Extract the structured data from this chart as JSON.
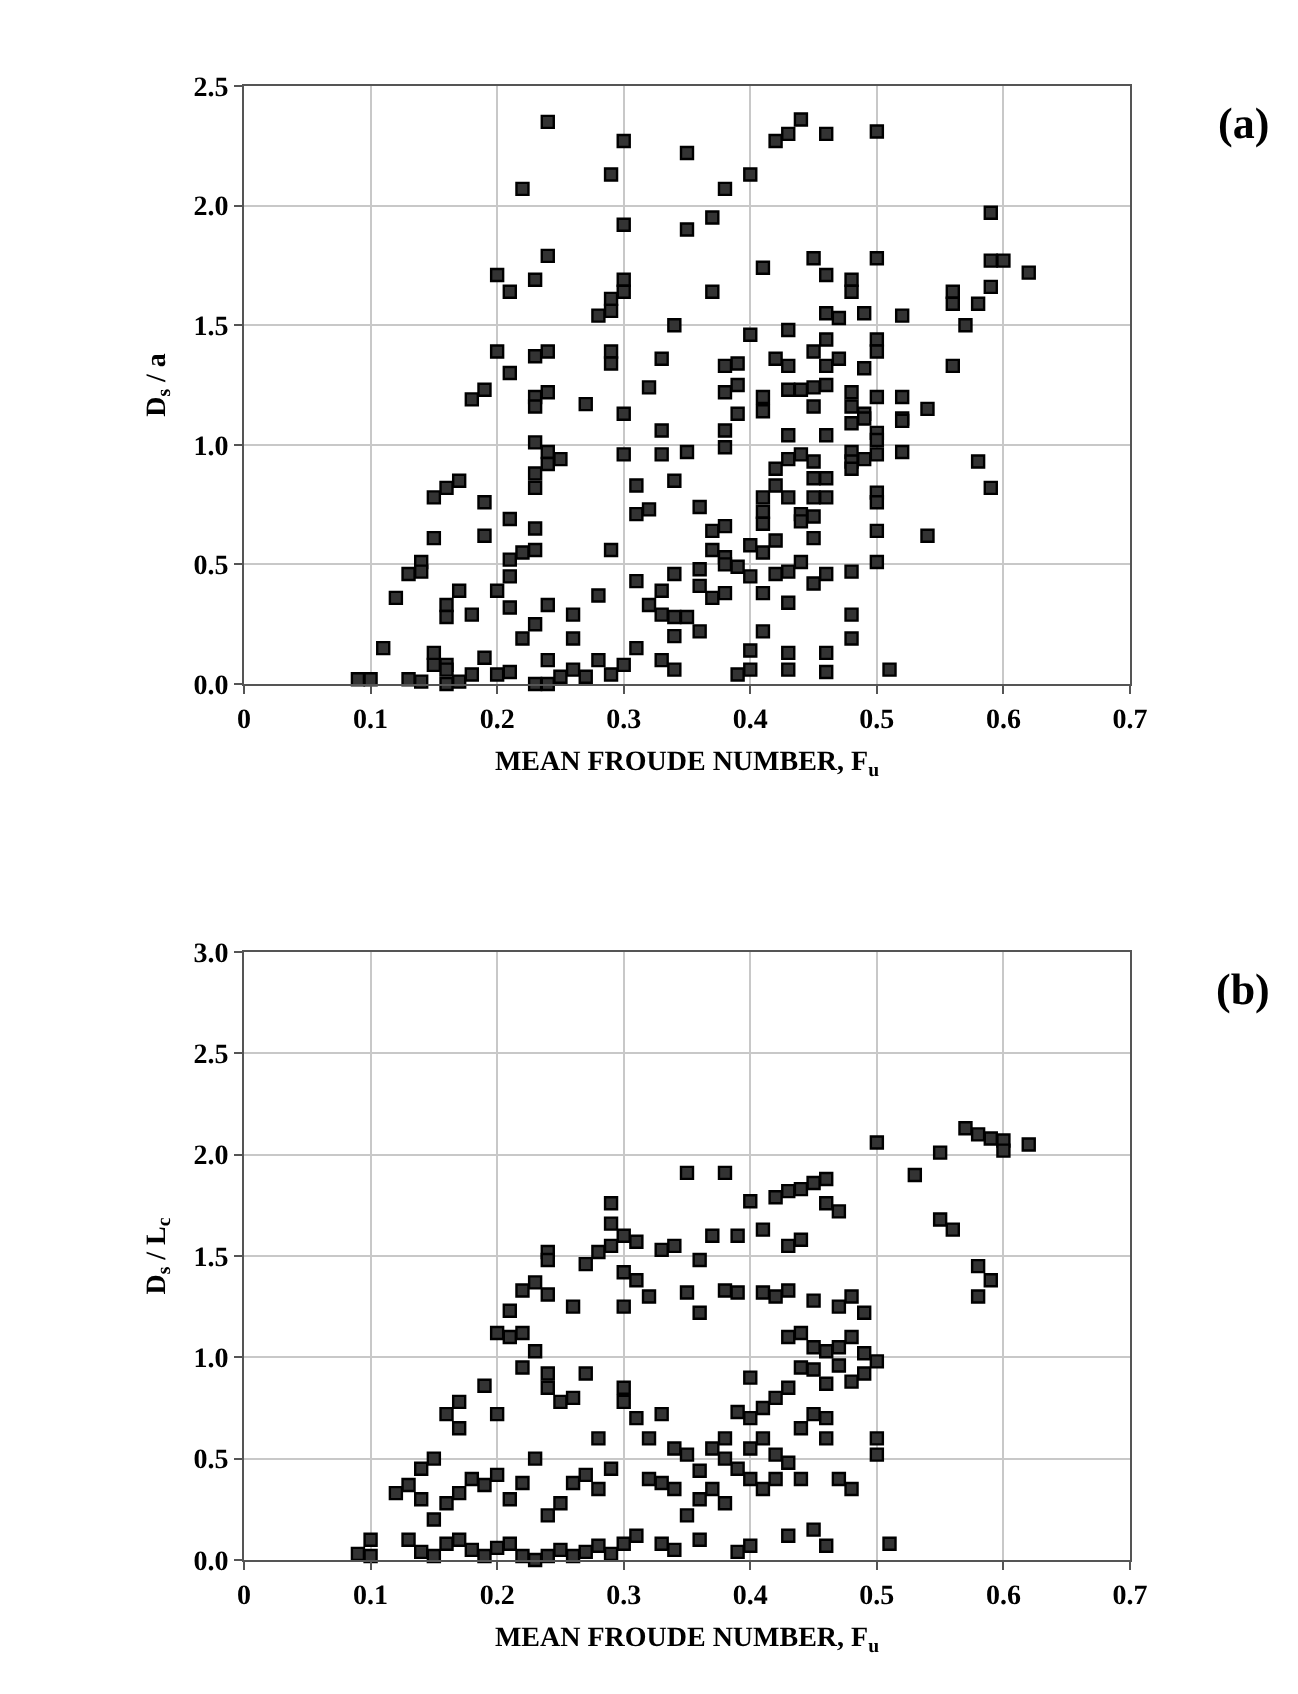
{
  "chart_data": [
    {
      "type": "scatter",
      "annotations": [
        "(a)"
      ],
      "xlabel": "MEAN FROUDE NUMBER, F$_{u}$",
      "ylabel": "D$_{s}$ / a",
      "xlim": [
        0,
        0.7
      ],
      "xticks": [
        0,
        0.1,
        0.2,
        0.3,
        0.4,
        0.5,
        0.6,
        0.7
      ],
      "ylim": [
        0,
        2.5
      ],
      "yticks": [
        {
          "value": 0,
          "label": "0.0"
        },
        {
          "value": 0.5,
          "label": "0.5"
        },
        {
          "value": 1,
          "label": "1.0"
        },
        {
          "value": 1.5,
          "label": "1.5"
        },
        {
          "value": 2,
          "label": "2.0"
        },
        {
          "value": 2.5,
          "label": "2.5"
        }
      ],
      "grid": true,
      "marker": "square",
      "color": "#333333",
      "x": [
        0.24,
        0.3,
        0.29,
        0.22,
        0.3,
        0.24,
        0.2,
        0.21,
        0.23,
        0.3,
        0.3,
        0.29,
        0.29,
        0.28,
        0.2,
        0.23,
        0.24,
        0.29,
        0.29,
        0.21,
        0.19,
        0.18,
        0.23,
        0.24,
        0.23,
        0.27,
        0.3,
        0.23,
        0.24,
        0.25,
        0.24,
        0.23,
        0.23,
        0.3,
        0.31,
        0.31,
        0.32,
        0.17,
        0.16,
        0.15,
        0.19,
        0.21,
        0.19,
        0.15,
        0.23,
        0.22,
        0.23,
        0.29,
        0.14,
        0.14,
        0.13,
        0.21,
        0.21,
        0.2,
        0.17,
        0.12,
        0.16,
        0.16,
        0.18,
        0.21,
        0.24,
        0.23,
        0.22,
        0.26,
        0.28,
        0.26,
        0.31,
        0.32,
        0.33,
        0.34,
        0.11,
        0.09,
        0.1,
        0.13,
        0.14,
        0.15,
        0.15,
        0.16,
        0.16,
        0.16,
        0.17,
        0.18,
        0.19,
        0.2,
        0.21,
        0.23,
        0.24,
        0.24,
        0.25,
        0.26,
        0.28,
        0.27,
        0.29,
        0.3,
        0.31,
        0.33,
        0.34,
        0.34,
        0.35,
        0.34,
        0.33,
        0.32,
        0.33,
        0.33,
        0.35,
        0.34,
        0.35,
        0.33,
        0.34,
        0.35,
        0.38,
        0.4,
        0.37,
        0.42,
        0.43,
        0.44,
        0.46,
        0.5,
        0.59,
        0.41,
        0.37,
        0.45,
        0.46,
        0.5,
        0.48,
        0.48,
        0.59,
        0.6,
        0.62,
        0.56,
        0.59,
        0.56,
        0.58,
        0.57,
        0.56,
        0.46,
        0.47,
        0.49,
        0.52,
        0.4,
        0.43,
        0.46,
        0.5,
        0.5,
        0.45,
        0.42,
        0.43,
        0.46,
        0.47,
        0.49,
        0.38,
        0.39,
        0.38,
        0.39,
        0.39,
        0.38,
        0.38,
        0.41,
        0.41,
        0.43,
        0.44,
        0.45,
        0.45,
        0.46,
        0.48,
        0.48,
        0.49,
        0.49,
        0.5,
        0.52,
        0.54,
        0.52,
        0.52,
        0.5,
        0.5,
        0.48,
        0.43,
        0.46,
        0.43,
        0.44,
        0.45,
        0.48,
        0.48,
        0.48,
        0.49,
        0.5,
        0.52,
        0.58,
        0.59,
        0.42,
        0.42,
        0.41,
        0.41,
        0.41,
        0.43,
        0.44,
        0.44,
        0.45,
        0.45,
        0.46,
        0.46,
        0.45,
        0.45,
        0.5,
        0.5,
        0.5,
        0.54,
        0.37,
        0.38,
        0.37,
        0.38,
        0.38,
        0.4,
        0.41,
        0.42,
        0.36,
        0.36,
        0.37,
        0.38,
        0.39,
        0.4,
        0.41,
        0.42,
        0.43,
        0.43,
        0.44,
        0.45,
        0.46,
        0.48,
        0.5,
        0.48,
        0.48,
        0.41,
        0.4,
        0.4,
        0.39,
        0.43,
        0.43,
        0.46,
        0.46,
        0.51,
        0.36,
        0.36
      ],
      "values": [
        2.35,
        2.27,
        2.13,
        2.07,
        1.92,
        1.79,
        1.71,
        1.64,
        1.69,
        1.69,
        1.64,
        1.61,
        1.56,
        1.54,
        1.39,
        1.37,
        1.39,
        1.39,
        1.34,
        1.3,
        1.23,
        1.19,
        1.2,
        1.22,
        1.16,
        1.17,
        1.13,
        1.01,
        0.97,
        0.94,
        0.92,
        0.88,
        0.82,
        0.96,
        0.83,
        0.71,
        0.73,
        0.85,
        0.82,
        0.78,
        0.76,
        0.69,
        0.62,
        0.61,
        0.65,
        0.55,
        0.56,
        0.56,
        0.51,
        0.47,
        0.46,
        0.52,
        0.45,
        0.39,
        0.39,
        0.36,
        0.33,
        0.28,
        0.29,
        0.32,
        0.33,
        0.25,
        0.19,
        0.29,
        0.37,
        0.19,
        0.43,
        0.33,
        0.39,
        0.46,
        0.15,
        0.02,
        0.02,
        0.02,
        0.01,
        0.08,
        0.13,
        0.08,
        0.0,
        0.06,
        0.01,
        0.04,
        0.11,
        0.04,
        0.05,
        0.0,
        0.0,
        0.1,
        0.03,
        0.06,
        0.1,
        0.03,
        0.04,
        0.08,
        0.15,
        0.1,
        0.06,
        0.2,
        1.9,
        1.5,
        1.36,
        1.24,
        1.06,
        0.96,
        0.97,
        0.85,
        2.22,
        0.29,
        0.28,
        0.28,
        2.07,
        2.13,
        1.95,
        2.27,
        2.3,
        2.36,
        2.3,
        2.31,
        1.97,
        1.74,
        1.64,
        1.78,
        1.71,
        1.78,
        1.69,
        1.64,
        1.77,
        1.77,
        1.72,
        1.64,
        1.66,
        1.59,
        1.59,
        1.5,
        1.33,
        1.55,
        1.53,
        1.55,
        1.54,
        1.46,
        1.48,
        1.44,
        1.44,
        1.39,
        1.39,
        1.36,
        1.33,
        1.33,
        1.36,
        1.32,
        1.33,
        1.34,
        1.22,
        1.25,
        1.13,
        1.06,
        0.99,
        1.2,
        1.14,
        1.23,
        1.23,
        1.24,
        1.16,
        1.25,
        1.22,
        1.16,
        1.13,
        1.11,
        1.2,
        1.2,
        1.15,
        1.11,
        1.1,
        1.05,
        1.02,
        1.09,
        1.04,
        1.04,
        0.94,
        0.96,
        0.93,
        0.97,
        0.93,
        0.9,
        0.94,
        0.96,
        0.97,
        0.93,
        0.82,
        0.9,
        0.83,
        0.78,
        0.72,
        0.67,
        0.78,
        0.71,
        0.68,
        0.86,
        0.78,
        0.86,
        0.78,
        0.7,
        0.61,
        0.8,
        0.76,
        0.64,
        0.62,
        0.64,
        0.66,
        0.56,
        0.53,
        0.5,
        0.58,
        0.55,
        0.6,
        0.48,
        0.41,
        0.36,
        0.38,
        0.49,
        0.45,
        0.38,
        0.46,
        0.47,
        0.34,
        0.51,
        0.42,
        0.46,
        0.47,
        0.51,
        0.29,
        0.19,
        0.22,
        0.14,
        0.06,
        0.04,
        0.13,
        0.06,
        0.13,
        0.05,
        0.06,
        0.74,
        0.22
      ]
    },
    {
      "type": "scatter",
      "annotations": [
        "(b)"
      ],
      "xlabel": "MEAN FROUDE NUMBER, F$_{u}$",
      "ylabel": "D$_{s}$ / L$_{c}$",
      "xlim": [
        0,
        0.7
      ],
      "xticks": [
        0,
        0.1,
        0.2,
        0.3,
        0.4,
        0.5,
        0.6,
        0.7
      ],
      "ylim": [
        0,
        3
      ],
      "yticks": [
        {
          "value": 0,
          "label": "0.0"
        },
        {
          "value": 0.5,
          "label": "0.5"
        },
        {
          "value": 1,
          "label": "1.0"
        },
        {
          "value": 1.5,
          "label": "1.5"
        },
        {
          "value": 2,
          "label": "2.0"
        },
        {
          "value": 2.5,
          "label": "2.5"
        },
        {
          "value": 3,
          "label": "3.0"
        }
      ],
      "grid": true,
      "marker": "square",
      "color": "#333333",
      "x": [
        0.57,
        0.58,
        0.59,
        0.6,
        0.62,
        0.6,
        0.55,
        0.5,
        0.53,
        0.55,
        0.56,
        0.58,
        0.59,
        0.58,
        0.46,
        0.45,
        0.44,
        0.43,
        0.42,
        0.4,
        0.38,
        0.35,
        0.47,
        0.46,
        0.44,
        0.43,
        0.41,
        0.39,
        0.37,
        0.36,
        0.34,
        0.33,
        0.29,
        0.29,
        0.3,
        0.31,
        0.29,
        0.28,
        0.27,
        0.3,
        0.31,
        0.3,
        0.32,
        0.26,
        0.24,
        0.24,
        0.23,
        0.22,
        0.24,
        0.21,
        0.2,
        0.21,
        0.22,
        0.23,
        0.24,
        0.24,
        0.25,
        0.22,
        0.19,
        0.2,
        0.17,
        0.16,
        0.17,
        0.15,
        0.14,
        0.13,
        0.12,
        0.1,
        0.09,
        0.1,
        0.35,
        0.36,
        0.38,
        0.39,
        0.41,
        0.43,
        0.45,
        0.48,
        0.47,
        0.49,
        0.48,
        0.47,
        0.46,
        0.49,
        0.5,
        0.49,
        0.47,
        0.48,
        0.46,
        0.45,
        0.44,
        0.43,
        0.42,
        0.41,
        0.4,
        0.4,
        0.39,
        0.38,
        0.37,
        0.38,
        0.39,
        0.4,
        0.41,
        0.42,
        0.43,
        0.44,
        0.45,
        0.46,
        0.46,
        0.47,
        0.48,
        0.5,
        0.5,
        0.51,
        0.46,
        0.45,
        0.43,
        0.4,
        0.39,
        0.36,
        0.35,
        0.34,
        0.33,
        0.32,
        0.3,
        0.3,
        0.32,
        0.31,
        0.33,
        0.34,
        0.35,
        0.36,
        0.36,
        0.37,
        0.38,
        0.4,
        0.41,
        0.42,
        0.44,
        0.29,
        0.28,
        0.27,
        0.26,
        0.25,
        0.24,
        0.23,
        0.22,
        0.21,
        0.2,
        0.19,
        0.18,
        0.17,
        0.16,
        0.15,
        0.14,
        0.13,
        0.14,
        0.15,
        0.16,
        0.17,
        0.18,
        0.19,
        0.2,
        0.21,
        0.22,
        0.23,
        0.24,
        0.25,
        0.26,
        0.27,
        0.28,
        0.29,
        0.3,
        0.31,
        0.33,
        0.34,
        0.42,
        0.44,
        0.45,
        0.43,
        0.27,
        0.26,
        0.28
      ],
      "values": [
        2.13,
        2.1,
        2.08,
        2.07,
        2.05,
        2.02,
        2.01,
        2.06,
        1.9,
        1.68,
        1.63,
        1.45,
        1.38,
        1.3,
        1.88,
        1.86,
        1.83,
        1.82,
        1.79,
        1.77,
        1.91,
        1.91,
        1.72,
        1.76,
        1.58,
        1.55,
        1.63,
        1.6,
        1.6,
        1.48,
        1.55,
        1.53,
        1.76,
        1.66,
        1.6,
        1.57,
        1.55,
        1.52,
        1.46,
        1.42,
        1.38,
        1.25,
        1.3,
        1.25,
        1.52,
        1.48,
        1.37,
        1.33,
        1.31,
        1.23,
        1.12,
        1.1,
        1.12,
        1.03,
        0.92,
        0.85,
        0.78,
        0.95,
        0.86,
        0.72,
        0.78,
        0.72,
        0.65,
        0.5,
        0.45,
        0.37,
        0.33,
        0.1,
        0.03,
        0.02,
        1.32,
        1.22,
        1.33,
        1.32,
        1.32,
        1.33,
        1.28,
        1.3,
        1.25,
        1.22,
        1.1,
        1.05,
        1.03,
        1.02,
        0.98,
        0.92,
        0.96,
        0.88,
        0.87,
        0.94,
        0.95,
        0.85,
        0.8,
        0.75,
        0.9,
        0.7,
        0.73,
        0.6,
        0.55,
        0.5,
        0.45,
        0.55,
        0.6,
        0.52,
        0.48,
        0.65,
        0.72,
        0.7,
        0.6,
        0.4,
        0.35,
        0.6,
        0.52,
        0.08,
        0.07,
        0.15,
        0.12,
        0.07,
        0.04,
        0.1,
        0.22,
        0.35,
        0.38,
        0.4,
        0.85,
        0.78,
        0.6,
        0.7,
        0.72,
        0.55,
        0.52,
        0.44,
        0.3,
        0.35,
        0.28,
        0.4,
        0.35,
        0.4,
        0.4,
        0.45,
        0.35,
        0.42,
        0.38,
        0.28,
        0.22,
        0.5,
        0.38,
        0.3,
        0.42,
        0.37,
        0.4,
        0.33,
        0.28,
        0.2,
        0.3,
        0.1,
        0.04,
        0.02,
        0.08,
        0.1,
        0.05,
        0.02,
        0.06,
        0.08,
        0.02,
        0.0,
        0.02,
        0.05,
        0.02,
        0.04,
        0.07,
        0.03,
        0.08,
        0.12,
        0.08,
        0.05,
        1.3,
        1.12,
        1.05,
        1.1,
        0.92,
        0.8,
        0.6
      ]
    }
  ]
}
